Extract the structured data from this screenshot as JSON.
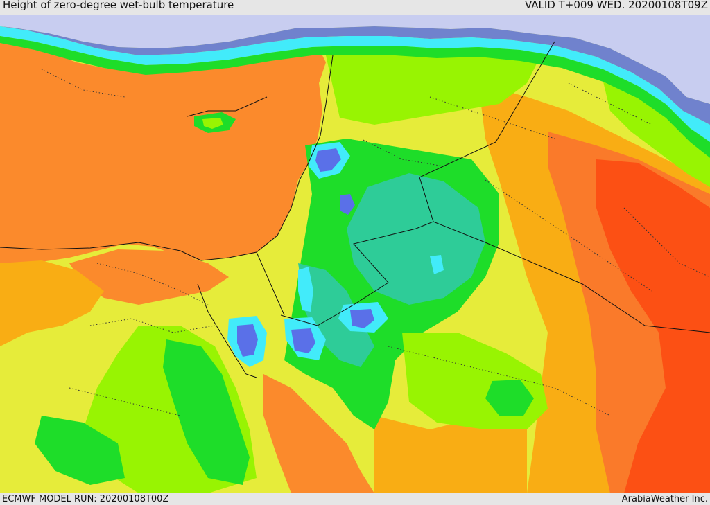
{
  "header": {
    "title": "Height of zero-degree wet-bulb temperature",
    "valid": "VALID T+009 WED. 20200108T09Z"
  },
  "footer": {
    "model_run": "ECMWF MODEL RUN: 20200108T00Z",
    "credit": "ArabiaWeather Inc."
  },
  "colors": {
    "red": "#fc5014",
    "dark_orange": "#fa7a2a",
    "orange": "#fb8a2c",
    "light_orange": "#f9ad14",
    "yellow": "#e6ec3a",
    "lime": "#98f402",
    "green": "#1edd29",
    "teal": "#2ecc98",
    "cyan": "#42ebfa",
    "blue": "#5a70e8",
    "lavender": "#c8cdf0"
  }
}
